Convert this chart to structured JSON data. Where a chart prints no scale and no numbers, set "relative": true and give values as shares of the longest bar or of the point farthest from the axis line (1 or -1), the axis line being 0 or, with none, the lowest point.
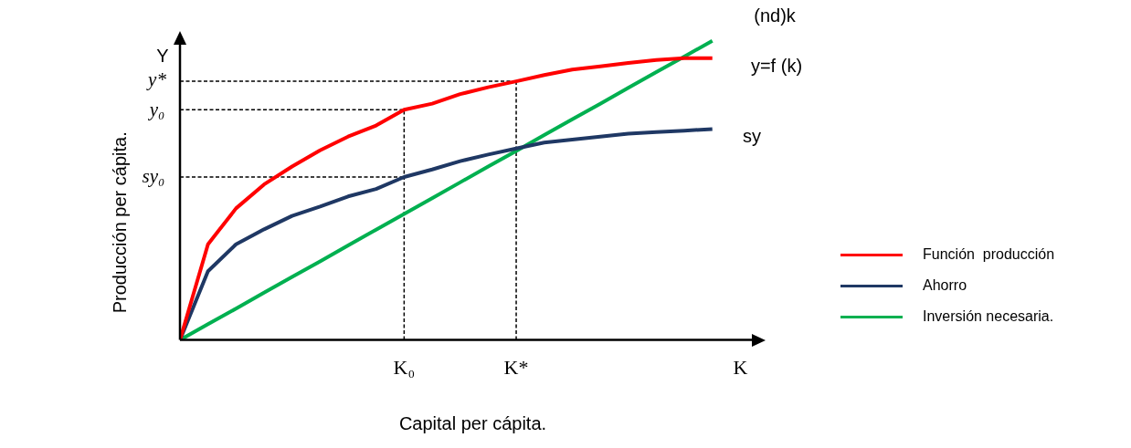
{
  "chart_data": {
    "type": "line",
    "relative": true,
    "xlabel": "Capital per cápita.",
    "ylabel": "Producción per cápita.",
    "categories": [
      null,
      null,
      null,
      null,
      null,
      null,
      null,
      null,
      "K₀",
      null,
      null,
      null,
      "K*",
      null,
      null,
      null,
      null,
      null,
      null,
      null,
      "K"
    ],
    "legend": "right",
    "series": [
      {
        "name": "Función  producción",
        "color": "#ff0000",
        "values": [
          0,
          0.32,
          0.44,
          0.52,
          0.58,
          0.634,
          0.68,
          0.717,
          0.77,
          0.79,
          0.822,
          0.845,
          0.865,
          0.886,
          0.904,
          0.915,
          0.926,
          0.936,
          0.942,
          0.942,
          null
        ]
      },
      {
        "name": "Ahorro",
        "color": "#1f3864",
        "values": [
          0,
          0.23,
          0.32,
          0.37,
          0.415,
          0.446,
          0.48,
          0.505,
          0.545,
          0.57,
          0.598,
          0.62,
          0.64,
          0.66,
          0.67,
          0.68,
          0.69,
          0.695,
          0.7,
          0.705,
          null
        ]
      },
      {
        "name": "Inversión necesaria.",
        "color": "#00b050",
        "values": [
          0,
          0.053,
          0.105,
          0.158,
          0.211,
          0.263,
          0.316,
          0.369,
          0.421,
          0.474,
          0.527,
          0.58,
          0.632,
          0.685,
          0.738,
          0.79,
          0.843,
          0.896,
          0.948,
          1,
          null
        ]
      },
      {
        "color": "#000000",
        "line_style": "dashed",
        "values": [
          0.865,
          0.865,
          0.865,
          0.865,
          0.865,
          0.865,
          0.865,
          0.865,
          0.865,
          0.865,
          0.865,
          0.865,
          0.865,
          null,
          null,
          null,
          null,
          null,
          null,
          null,
          null
        ]
      },
      {
        "color": "#000000",
        "line_style": "dashed",
        "x": [
          "K*",
          "K*"
        ],
        "values": [
          0,
          0.865
        ]
      },
      {
        "color": "#000000",
        "line_style": "dashed",
        "values": [
          0.77,
          0.77,
          0.77,
          0.77,
          0.77,
          0.77,
          0.77,
          0.77,
          0.77,
          null,
          null,
          null,
          null,
          null,
          null,
          null,
          null,
          null,
          null,
          null,
          null
        ]
      },
      {
        "color": "#000000",
        "line_style": "dashed",
        "x": [
          "K₀",
          "K₀"
        ],
        "values": [
          0,
          0.77
        ]
      },
      {
        "color": "#000000",
        "line_style": "dashed",
        "values": [
          0.545,
          0.545,
          0.545,
          0.545,
          0.545,
          0.545,
          0.545,
          0.545,
          0.545,
          null,
          null,
          null,
          null,
          null,
          null,
          null,
          null,
          null,
          null,
          null,
          null
        ]
      }
    ],
    "annotations": [
      "Y",
      "y*",
      "y₀",
      "sy₀",
      "(nd)k",
      "y=f (k)",
      "sy"
    ]
  }
}
